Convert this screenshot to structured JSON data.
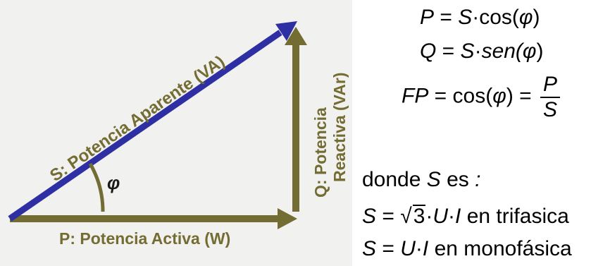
{
  "diagram": {
    "colors": {
      "hypotenuse": "#2e2fa3",
      "leg": "#736c33",
      "panel": "#f1f1ef"
    },
    "hypotenuse_label": "S: Potencia Aparente (VA)",
    "base_label": "P: Potencia Activa (W)",
    "vertical_label_line1": "Q: Potencia",
    "vertical_label_line2": "Reactiva (VAr)",
    "angle_symbol": "φ"
  },
  "formulas": {
    "p_eq": {
      "lhs": "P",
      "eq": " = ",
      "s": "S",
      "dot": "·",
      "fn": "cos(",
      "phi": "φ",
      "close": ")"
    },
    "q_eq": {
      "lhs": "Q",
      "eq": " = ",
      "s": "S",
      "dot": "·",
      "fn": "sen(",
      "phi": "φ",
      "close": ")"
    },
    "fp_eq": {
      "lhs": "FP",
      "eq": " = ",
      "fn": "cos(",
      "phi": "φ",
      "close": ")",
      "eq2": " = ",
      "num": "P",
      "den": "S"
    },
    "donde": {
      "pre": "donde ",
      "s": "S",
      "post": " es",
      "colon": " :"
    },
    "trifasica": {
      "s": "S",
      "eq": " = ",
      "root": "3",
      "dot1": "·",
      "u": "U",
      "dot2": "·",
      "i": "I",
      "text": " en trifasica"
    },
    "monofasica": {
      "s": "S",
      "eq": " = ",
      "u": "U",
      "dot": "·",
      "i": "I",
      "text": " en monofásica"
    }
  }
}
